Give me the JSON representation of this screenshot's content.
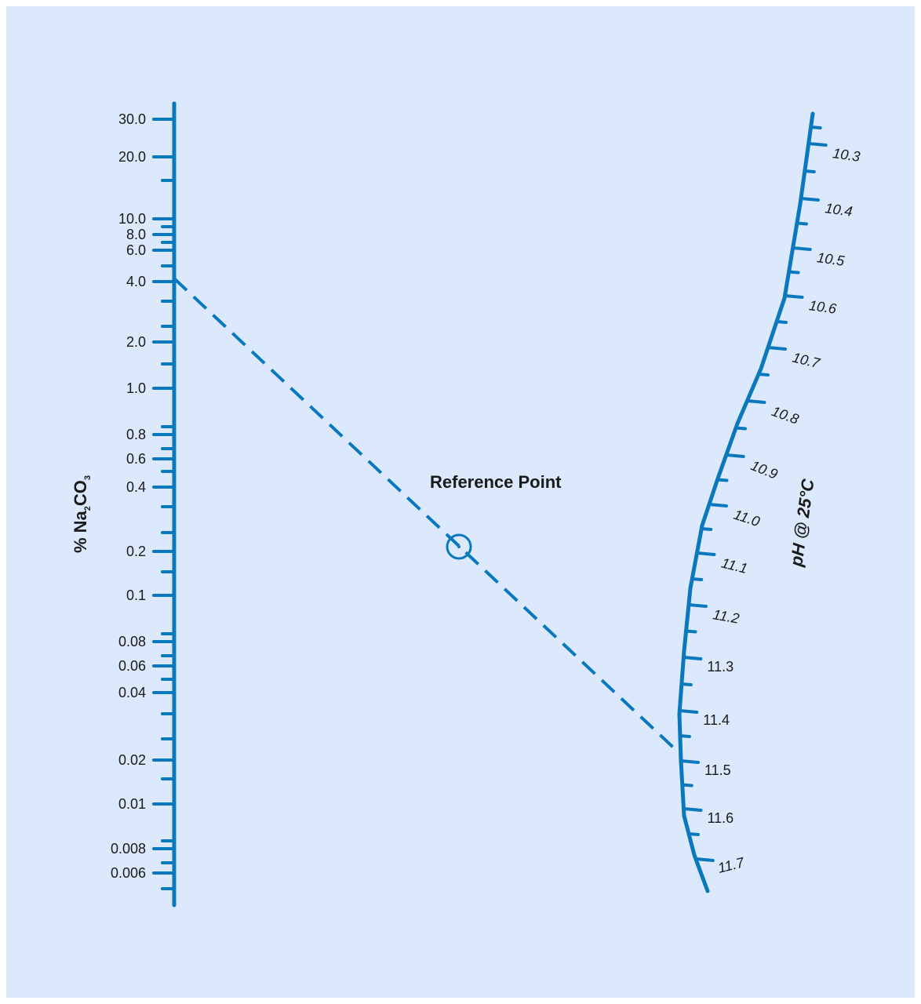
{
  "colors": {
    "background": "#dce8fb",
    "scale": "#0a78bd",
    "text": "#1a1a1a"
  },
  "left_scale": {
    "label_prefix": "% Na",
    "label_sub1": "2",
    "label_mid": "CO",
    "label_sub2": "3",
    "ticks": [
      {
        "value": "30.0",
        "labeled": true
      },
      {
        "value": "20.0",
        "labeled": true
      },
      {
        "value": "",
        "labeled": false
      },
      {
        "value": "10.0",
        "labeled": true
      },
      {
        "value": "",
        "labeled": false
      },
      {
        "value": "8.0",
        "labeled": true
      },
      {
        "value": "",
        "labeled": false
      },
      {
        "value": "6.0",
        "labeled": true
      },
      {
        "value": "",
        "labeled": false
      },
      {
        "value": "4.0",
        "labeled": true
      },
      {
        "value": "",
        "labeled": false
      },
      {
        "value": "",
        "labeled": false
      },
      {
        "value": "2.0",
        "labeled": true
      },
      {
        "value": "",
        "labeled": false
      },
      {
        "value": "1.0",
        "labeled": true
      },
      {
        "value": "",
        "labeled": false
      },
      {
        "value": "0.8",
        "labeled": true
      },
      {
        "value": "",
        "labeled": false
      },
      {
        "value": "0.6",
        "labeled": true
      },
      {
        "value": "",
        "labeled": false
      },
      {
        "value": "0.4",
        "labeled": true
      },
      {
        "value": "",
        "labeled": false
      },
      {
        "value": "",
        "labeled": false
      },
      {
        "value": "0.2",
        "labeled": true
      },
      {
        "value": "",
        "labeled": false
      },
      {
        "value": "0.1",
        "labeled": true
      },
      {
        "value": "",
        "labeled": false
      },
      {
        "value": "0.08",
        "labeled": true
      },
      {
        "value": "",
        "labeled": false
      },
      {
        "value": "0.06",
        "labeled": true
      },
      {
        "value": "",
        "labeled": false
      },
      {
        "value": "0.04",
        "labeled": true
      },
      {
        "value": "",
        "labeled": false
      },
      {
        "value": "",
        "labeled": false
      },
      {
        "value": "0.02",
        "labeled": true
      },
      {
        "value": "",
        "labeled": false
      },
      {
        "value": "0.01",
        "labeled": true
      },
      {
        "value": "",
        "labeled": false
      },
      {
        "value": "0.008",
        "labeled": true
      },
      {
        "value": "",
        "labeled": false
      },
      {
        "value": "0.006",
        "labeled": true
      },
      {
        "value": "",
        "labeled": false
      }
    ]
  },
  "right_scale": {
    "label": "pH @ 25°C",
    "ticks": [
      {
        "value": "10.3"
      },
      {
        "value": "10.4"
      },
      {
        "value": "10.5"
      },
      {
        "value": "10.6"
      },
      {
        "value": "10.7"
      },
      {
        "value": "10.8"
      },
      {
        "value": "10.9"
      },
      {
        "value": "11.0"
      },
      {
        "value": "11.1"
      },
      {
        "value": "11.2"
      },
      {
        "value": "11.3"
      },
      {
        "value": "11.4"
      },
      {
        "value": "11.5"
      },
      {
        "value": "11.6"
      },
      {
        "value": "11.7"
      }
    ]
  },
  "reference_point": {
    "label": "Reference Point"
  },
  "example": {
    "na2co3_percent": 5.0,
    "ph": 11.48
  }
}
